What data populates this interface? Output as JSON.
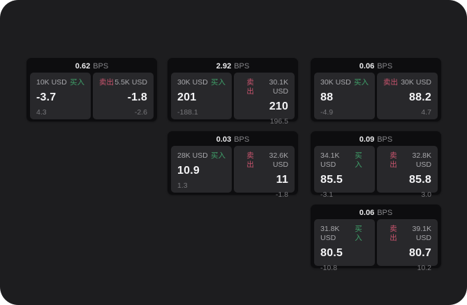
{
  "labels": {
    "buy": "买入",
    "sell": "卖出",
    "bps_suffix": "BPS"
  },
  "colors": {
    "buy_accent": "#3fa06a",
    "sell_accent": "#c9546e",
    "background": "#1d1d1f",
    "card": "#0d0d0f",
    "panel": "#28282b"
  },
  "cards": [
    {
      "bps": "0.62",
      "grid": {
        "row": 1,
        "col": 1
      },
      "buy": {
        "size": "10K USD",
        "price": "-3.7",
        "delta": "4.3"
      },
      "sell": {
        "size": "5.5K USD",
        "price": "-1.8",
        "delta": "-2.6"
      }
    },
    {
      "bps": "2.92",
      "grid": {
        "row": 1,
        "col": 2
      },
      "buy": {
        "size": "30K USD",
        "price": "201",
        "delta": "-188.1"
      },
      "sell": {
        "size": "30.1K USD",
        "price": "210",
        "delta": "196.5"
      }
    },
    {
      "bps": "0.06",
      "grid": {
        "row": 1,
        "col": 3
      },
      "buy": {
        "size": "30K USD",
        "price": "88",
        "delta": "-4.9"
      },
      "sell": {
        "size": "30K USD",
        "price": "88.2",
        "delta": "4.7"
      }
    },
    {
      "bps": "0.03",
      "grid": {
        "row": 2,
        "col": 2
      },
      "buy": {
        "size": "28K USD",
        "price": "10.9",
        "delta": "1.3"
      },
      "sell": {
        "size": "32.6K USD",
        "price": "11",
        "delta": "-1.8"
      }
    },
    {
      "bps": "0.09",
      "grid": {
        "row": 2,
        "col": 3
      },
      "buy": {
        "size": "34.1K USD",
        "price": "85.5",
        "delta": "-3.1"
      },
      "sell": {
        "size": "32.8K USD",
        "price": "85.8",
        "delta": "3.0"
      }
    },
    {
      "bps": "0.06",
      "grid": {
        "row": 3,
        "col": 3
      },
      "buy": {
        "size": "31.8K USD",
        "price": "80.5",
        "delta": "-10.8"
      },
      "sell": {
        "size": "39.1K USD",
        "price": "80.7",
        "delta": "10.2"
      }
    }
  ]
}
